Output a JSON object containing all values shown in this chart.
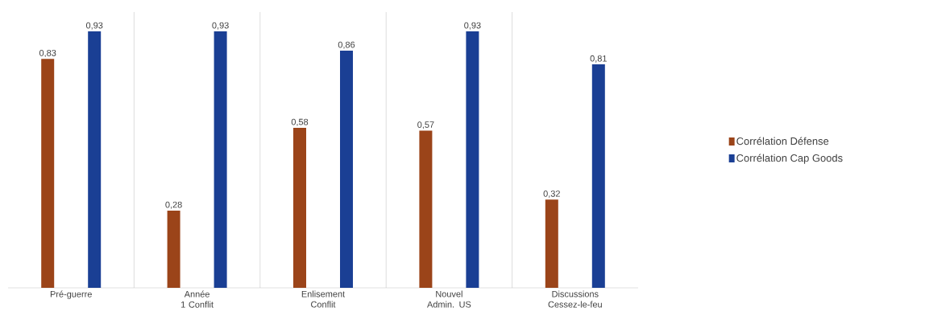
{
  "chart_data": {
    "type": "bar",
    "categories": [
      "Pré-guerre",
      "Année 1 Conflit",
      "Enlisement Conflit",
      "Nouvel Admin. US",
      "Discussions Cessez-le-feu"
    ],
    "series": [
      {
        "name": "Corrélation Défense",
        "color": "#9b4419",
        "values": [
          0.83,
          0.28,
          0.58,
          0.57,
          0.32
        ],
        "value_labels": [
          "0,83",
          "0,28",
          "0,58",
          "0,57",
          "0,32"
        ]
      },
      {
        "name": "Corrélation Cap Goods",
        "color": "#1a3f94",
        "values": [
          0.93,
          0.93,
          0.86,
          0.93,
          0.81
        ],
        "value_labels": [
          "0,93",
          "0,93",
          "0,86",
          "0,93",
          "0,81"
        ]
      }
    ],
    "grid": "x",
    "legend": "right"
  }
}
